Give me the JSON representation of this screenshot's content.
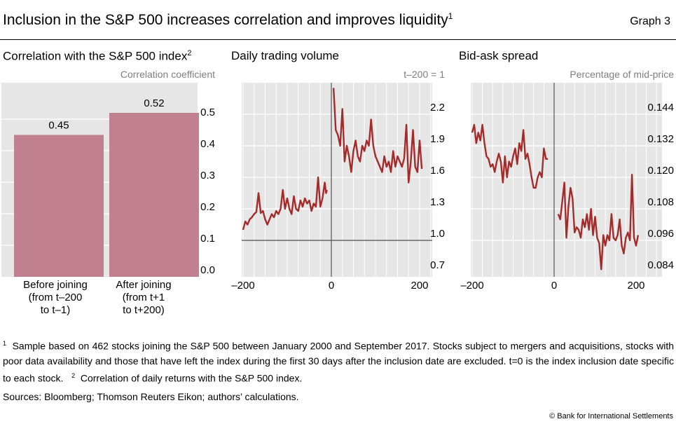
{
  "header": {
    "title": "Inclusion in the S&P 500 increases correlation and improves liquidity",
    "title_note": "1",
    "graph_label": "Graph 3"
  },
  "chart_data": [
    {
      "type": "bar",
      "title": "Correlation with the S&P 500 index",
      "title_note": "2",
      "ylabel": "Correlation coefficient",
      "categories": [
        "Before joining (from t–200 to t–1)",
        "After joining (from t+1 to t+200)"
      ],
      "category_lines": [
        [
          "Before joining",
          "(from t–200",
          "to t–1)"
        ],
        [
          "After joining",
          "(from t+1",
          "to t+200)"
        ]
      ],
      "values": [
        0.45,
        0.52
      ],
      "data_labels": [
        "0.45",
        "0.52"
      ],
      "ylim": [
        0,
        0.54
      ],
      "yticks": [
        0.0,
        0.1,
        0.2,
        0.3,
        0.4,
        0.5
      ],
      "ytick_labels": [
        "0.0",
        "0.1",
        "0.2",
        "0.3",
        "0.4",
        "0.5"
      ],
      "grid": true,
      "bar_color": "#c0808f"
    },
    {
      "type": "line",
      "title": "Daily trading volume",
      "ylabel": "t–200 = 1",
      "xlim": [
        -200,
        220
      ],
      "ylim": [
        0.65,
        2.5
      ],
      "xticks": [
        -200,
        0,
        200
      ],
      "xtick_labels": [
        "–200",
        "0",
        "200"
      ],
      "yticks": [
        0.7,
        1.0,
        1.3,
        1.6,
        1.9,
        2.2
      ],
      "ytick_labels": [
        "0.7",
        "1.0",
        "1.3",
        "1.6",
        "1.9",
        "2.2"
      ],
      "reference_line_y": 1.0,
      "grid": true,
      "line_color": "#a52a2a",
      "series": [
        {
          "x": [
            -200,
            -195,
            -190,
            -185,
            -180,
            -175,
            -170,
            -165,
            -160,
            -155,
            -150,
            -145,
            -140,
            -135,
            -130,
            -125,
            -120,
            -115,
            -110,
            -105,
            -100,
            -95,
            -90,
            -85,
            -80,
            -75,
            -70,
            -65,
            -60,
            -55,
            -50,
            -45,
            -40,
            -35,
            -30,
            -25,
            -20,
            -15,
            -12,
            -10
          ],
          "y": [
            1.1,
            1.18,
            1.15,
            1.2,
            1.22,
            1.25,
            1.27,
            1.45,
            1.26,
            1.28,
            1.2,
            1.15,
            1.2,
            1.25,
            1.22,
            1.28,
            1.25,
            1.3,
            1.48,
            1.3,
            1.4,
            1.3,
            1.25,
            1.42,
            1.3,
            1.28,
            1.38,
            1.32,
            1.4,
            1.35,
            1.38,
            1.28,
            1.35,
            1.32,
            1.6,
            1.32,
            1.4,
            1.55,
            1.45,
            1.48
          ]
        },
        {
          "x": [
            5,
            10,
            15,
            20,
            25,
            30,
            35,
            40,
            45,
            50,
            55,
            60,
            65,
            70,
            75,
            80,
            85,
            90,
            95,
            100,
            105,
            110,
            115,
            120,
            125,
            130,
            135,
            140,
            145,
            150,
            155,
            160,
            165,
            170,
            175,
            180,
            185,
            190,
            195,
            200,
            205
          ],
          "y": [
            2.45,
            2.05,
            2.0,
            1.9,
            2.25,
            1.75,
            1.9,
            1.8,
            1.65,
            1.85,
            1.95,
            1.8,
            1.75,
            1.9,
            1.85,
            1.95,
            1.9,
            2.15,
            1.9,
            1.8,
            1.75,
            1.7,
            1.65,
            1.8,
            1.7,
            1.75,
            1.65,
            1.85,
            1.7,
            1.8,
            1.75,
            1.7,
            1.78,
            2.1,
            1.55,
            1.75,
            2.05,
            1.7,
            1.65,
            1.95,
            1.68
          ]
        }
      ]
    },
    {
      "type": "line",
      "title": "Bid-ask spread",
      "ylabel": "Percentage of mid-price",
      "xlim": [
        -200,
        290
      ],
      "ylim": [
        0.0825,
        0.1545
      ],
      "xticks": [
        -200,
        0,
        200
      ],
      "xtick_labels": [
        "–200",
        "0",
        "200"
      ],
      "yticks": [
        0.084,
        0.096,
        0.108,
        0.12,
        0.132,
        0.144
      ],
      "ytick_labels": [
        "0.084",
        "0.096",
        "0.108",
        "0.120",
        "0.132",
        "0.144"
      ],
      "grid": true,
      "line_color": "#a52a2a",
      "series": [
        {
          "x": [
            -200,
            -195,
            -190,
            -185,
            -180,
            -175,
            -170,
            -165,
            -160,
            -155,
            -150,
            -145,
            -140,
            -135,
            -130,
            -125,
            -120,
            -115,
            -110,
            -105,
            -100,
            -95,
            -90,
            -85,
            -80,
            -75,
            -70,
            -65,
            -60,
            -55,
            -50,
            -45,
            -40,
            -35,
            -30,
            -25,
            -20,
            -15
          ],
          "y": [
            0.137,
            0.14,
            0.133,
            0.137,
            0.134,
            0.14,
            0.133,
            0.128,
            0.127,
            0.124,
            0.125,
            0.122,
            0.126,
            0.129,
            0.126,
            0.118,
            0.128,
            0.12,
            0.126,
            0.124,
            0.128,
            0.131,
            0.125,
            0.133,
            0.13,
            0.138,
            0.127,
            0.129,
            0.125,
            0.12,
            0.116,
            0.116,
            0.12,
            0.122,
            0.12,
            0.131,
            0.127,
            0.127
          ]
        },
        {
          "x": [
            10,
            15,
            20,
            25,
            30,
            35,
            40,
            45,
            50,
            55,
            60,
            65,
            70,
            75,
            80,
            85,
            90,
            95,
            100,
            105,
            110,
            115,
            120,
            125,
            130,
            135,
            140,
            145,
            150,
            155,
            160,
            165,
            170,
            175,
            180,
            185,
            190,
            195,
            200,
            205
          ],
          "y": [
            0.106,
            0.104,
            0.111,
            0.118,
            0.097,
            0.109,
            0.116,
            0.112,
            0.099,
            0.101,
            0.1,
            0.097,
            0.104,
            0.101,
            0.106,
            0.1,
            0.108,
            0.098,
            0.105,
            0.097,
            0.095,
            0.085,
            0.098,
            0.094,
            0.098,
            0.096,
            0.106,
            0.097,
            0.096,
            0.098,
            0.104,
            0.094,
            0.091,
            0.097,
            0.099,
            0.096,
            0.121,
            0.097,
            0.094,
            0.098
          ]
        }
      ]
    }
  ],
  "footnotes": {
    "n1_mark": "1",
    "n1": "Sample based on 462 stocks joining the S&P 500 between January 2000 and September 2017. Stocks subject to mergers and acquisitions, stocks with poor data availability and those that have left the index during the first 30 days after the inclusion date are excluded. t=0 is the index inclusion date specific to each stock.",
    "n2_mark": "2",
    "n2": "Correlation of daily returns with the S&P 500 index."
  },
  "sources": "Sources: Bloomberg; Thomson Reuters Eikon; authors’ calculations.",
  "copyright": "© Bank for International Settlements"
}
